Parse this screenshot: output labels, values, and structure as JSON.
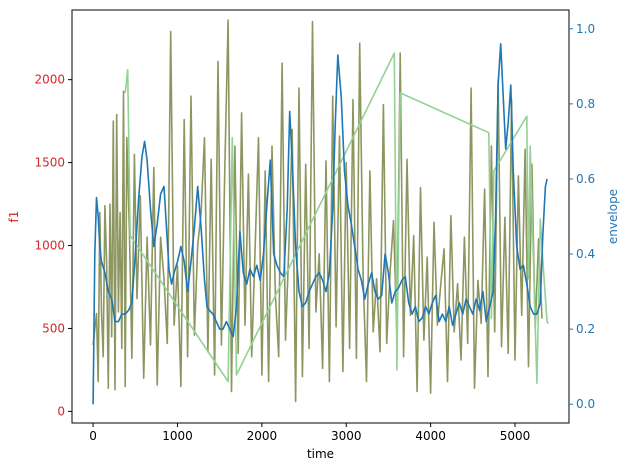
{
  "chart_data": {
    "type": "line",
    "xlabel": "time",
    "xlim": [
      -250,
      5640
    ],
    "x_ticks": [
      0,
      1000,
      2000,
      3000,
      4000,
      5000
    ],
    "left_axis": {
      "label": "f1",
      "color": "#d62728",
      "ylim": [
        -70,
        2420
      ],
      "ticks": [
        0,
        500,
        1000,
        1500,
        2000
      ]
    },
    "right_axis": {
      "label": "envelope",
      "color": "#1f77b4",
      "ylim": [
        -0.05,
        1.05
      ],
      "ticks": [
        0.0,
        0.2,
        0.4,
        0.6,
        0.8,
        1.0
      ],
      "tick_labels": [
        "0.0",
        "0.2",
        "0.4",
        "0.6",
        "0.8",
        "1.0"
      ]
    },
    "series": [
      {
        "axis": "left",
        "color": "#8c9660",
        "x": [
          0,
          40,
          60,
          80,
          100,
          120,
          140,
          160,
          180,
          200,
          220,
          240,
          260,
          280,
          300,
          320,
          340,
          360,
          380,
          400,
          430,
          460,
          490,
          520,
          560,
          600,
          640,
          680,
          720,
          760,
          800,
          840,
          880,
          920,
          960,
          1000,
          1040,
          1080,
          1120,
          1160,
          1200,
          1240,
          1280,
          1320,
          1360,
          1400,
          1440,
          1480,
          1520,
          1560,
          1600,
          1640,
          1680,
          1720,
          1760,
          1800,
          1840,
          1880,
          1920,
          1960,
          2000,
          2040,
          2080,
          2120,
          2160,
          2200,
          2240,
          2280,
          2320,
          2360,
          2400,
          2440,
          2480,
          2520,
          2560,
          2600,
          2640,
          2680,
          2720,
          2760,
          2800,
          2840,
          2880,
          2920,
          2960,
          3000,
          3040,
          3080,
          3120,
          3160,
          3200,
          3240,
          3280,
          3320,
          3360,
          3400,
          3440,
          3480,
          3520,
          3560,
          3600,
          3640,
          3680,
          3720,
          3760,
          3800,
          3840,
          3880,
          3920,
          3960,
          4000,
          4040,
          4080,
          4120,
          4160,
          4200,
          4240,
          4280,
          4320,
          4360,
          4400,
          4440,
          4480,
          4520,
          4560,
          4600,
          4640,
          4680,
          4720,
          4760,
          4800,
          4840,
          4880,
          4920,
          4960,
          5000,
          5040,
          5080,
          5120,
          5160,
          5200,
          5240,
          5280,
          5320
        ],
        "values": [
          400,
          590,
          180,
          1200,
          600,
          330,
          1240,
          900,
          140,
          1250,
          450,
          1750,
          130,
          1790,
          600,
          1200,
          380,
          1930,
          150,
          1650,
          1090,
          320,
          1550,
          680,
          1300,
          200,
          1050,
          400,
          1470,
          160,
          1050,
          800,
          410,
          2290,
          520,
          880,
          150,
          1760,
          330,
          1900,
          460,
          1000,
          1200,
          1650,
          360,
          1520,
          220,
          2110,
          400,
          1430,
          2360,
          120,
          1600,
          350,
          1800,
          520,
          1430,
          330,
          980,
          1650,
          220,
          1450,
          180,
          1600,
          700,
          330,
          2100,
          430,
          1000,
          1700,
          60,
          1950,
          210,
          1490,
          380,
          2350,
          600,
          950,
          260,
          1510,
          180,
          1900,
          510,
          1660,
          240,
          1500,
          380,
          1880,
          320,
          2220,
          820,
          180,
          1450,
          480,
          800,
          360,
          1850,
          410,
          840,
          1150,
          460,
          2160,
          330,
          1520,
          580,
          1060,
          120,
          1350,
          430,
          930,
          110,
          1140,
          520,
          760,
          980,
          180,
          1180,
          480,
          770,
          310,
          1050,
          410,
          1950,
          140,
          790,
          530,
          1340,
          210,
          1600,
          480,
          2000,
          390,
          1170,
          350,
          1880,
          310,
          1420,
          580,
          1580,
          270,
          1490,
          500,
          1040,
          560
        ]
      },
      {
        "axis": "left",
        "color": "#94d194",
        "x": [
          380,
          410,
          440,
          1600,
          1650,
          1700,
          3570,
          3600,
          3640,
          4690,
          4720,
          4750,
          5140,
          5160,
          5180,
          5260,
          5300,
          5340,
          5380,
          5400
        ],
        "values": [
          1920,
          2060,
          1060,
          180,
          1650,
          220,
          2160,
          250,
          1920,
          1680,
          560,
          1450,
          1780,
          800,
          1600,
          170,
          1160,
          830,
          540,
          530
        ]
      },
      {
        "axis": "right",
        "color": "#1f77b4",
        "x": [
          0,
          20,
          40,
          60,
          80,
          100,
          140,
          180,
          220,
          260,
          300,
          340,
          380,
          420,
          460,
          500,
          540,
          580,
          610,
          640,
          680,
          720,
          760,
          800,
          840,
          870,
          900,
          930,
          960,
          1000,
          1040,
          1080,
          1120,
          1160,
          1200,
          1240,
          1280,
          1320,
          1350,
          1380,
          1420,
          1460,
          1500,
          1540,
          1580,
          1620,
          1660,
          1700,
          1740,
          1780,
          1820,
          1860,
          1900,
          1940,
          1980,
          2020,
          2060,
          2100,
          2140,
          2180,
          2220,
          2260,
          2300,
          2330,
          2360,
          2400,
          2440,
          2480,
          2520,
          2560,
          2600,
          2640,
          2680,
          2720,
          2760,
          2800,
          2840,
          2870,
          2900,
          2940,
          2980,
          3020,
          3060,
          3100,
          3140,
          3180,
          3220,
          3260,
          3300,
          3340,
          3380,
          3420,
          3460,
          3500,
          3540,
          3580,
          3620,
          3660,
          3700,
          3740,
          3780,
          3820,
          3860,
          3900,
          3940,
          3980,
          4020,
          4060,
          4100,
          4140,
          4180,
          4220,
          4260,
          4300,
          4340,
          4380,
          4420,
          4460,
          4500,
          4540,
          4580,
          4620,
          4660,
          4700,
          4740,
          4770,
          4800,
          4830,
          4860,
          4890,
          4920,
          4950,
          4980,
          5020,
          5060,
          5100,
          5140,
          5180,
          5220,
          5260,
          5300,
          5330,
          5360,
          5380
        ],
        "values": [
          0.0,
          0.4,
          0.55,
          0.5,
          0.42,
          0.38,
          0.35,
          0.3,
          0.28,
          0.22,
          0.22,
          0.24,
          0.24,
          0.25,
          0.27,
          0.4,
          0.55,
          0.66,
          0.7,
          0.65,
          0.52,
          0.42,
          0.48,
          0.56,
          0.58,
          0.47,
          0.36,
          0.32,
          0.35,
          0.38,
          0.42,
          0.38,
          0.3,
          0.38,
          0.47,
          0.58,
          0.47,
          0.33,
          0.26,
          0.25,
          0.24,
          0.22,
          0.2,
          0.2,
          0.22,
          0.2,
          0.18,
          0.26,
          0.46,
          0.35,
          0.32,
          0.36,
          0.34,
          0.37,
          0.33,
          0.4,
          0.53,
          0.65,
          0.4,
          0.37,
          0.35,
          0.34,
          0.52,
          0.78,
          0.65,
          0.42,
          0.3,
          0.26,
          0.27,
          0.3,
          0.32,
          0.34,
          0.35,
          0.33,
          0.3,
          0.35,
          0.52,
          0.75,
          0.93,
          0.82,
          0.62,
          0.53,
          0.48,
          0.42,
          0.36,
          0.33,
          0.28,
          0.32,
          0.35,
          0.3,
          0.28,
          0.29,
          0.4,
          0.35,
          0.27,
          0.3,
          0.31,
          0.33,
          0.34,
          0.27,
          0.24,
          0.26,
          0.22,
          0.23,
          0.26,
          0.24,
          0.27,
          0.29,
          0.22,
          0.24,
          0.22,
          0.26,
          0.21,
          0.24,
          0.27,
          0.24,
          0.28,
          0.26,
          0.24,
          0.28,
          0.25,
          0.3,
          0.22,
          0.26,
          0.3,
          0.5,
          0.85,
          0.96,
          0.82,
          0.68,
          0.75,
          0.85,
          0.62,
          0.42,
          0.36,
          0.37,
          0.32,
          0.26,
          0.24,
          0.24,
          0.27,
          0.45,
          0.58,
          0.6
        ]
      }
    ],
    "grid": false,
    "legend": "none"
  }
}
